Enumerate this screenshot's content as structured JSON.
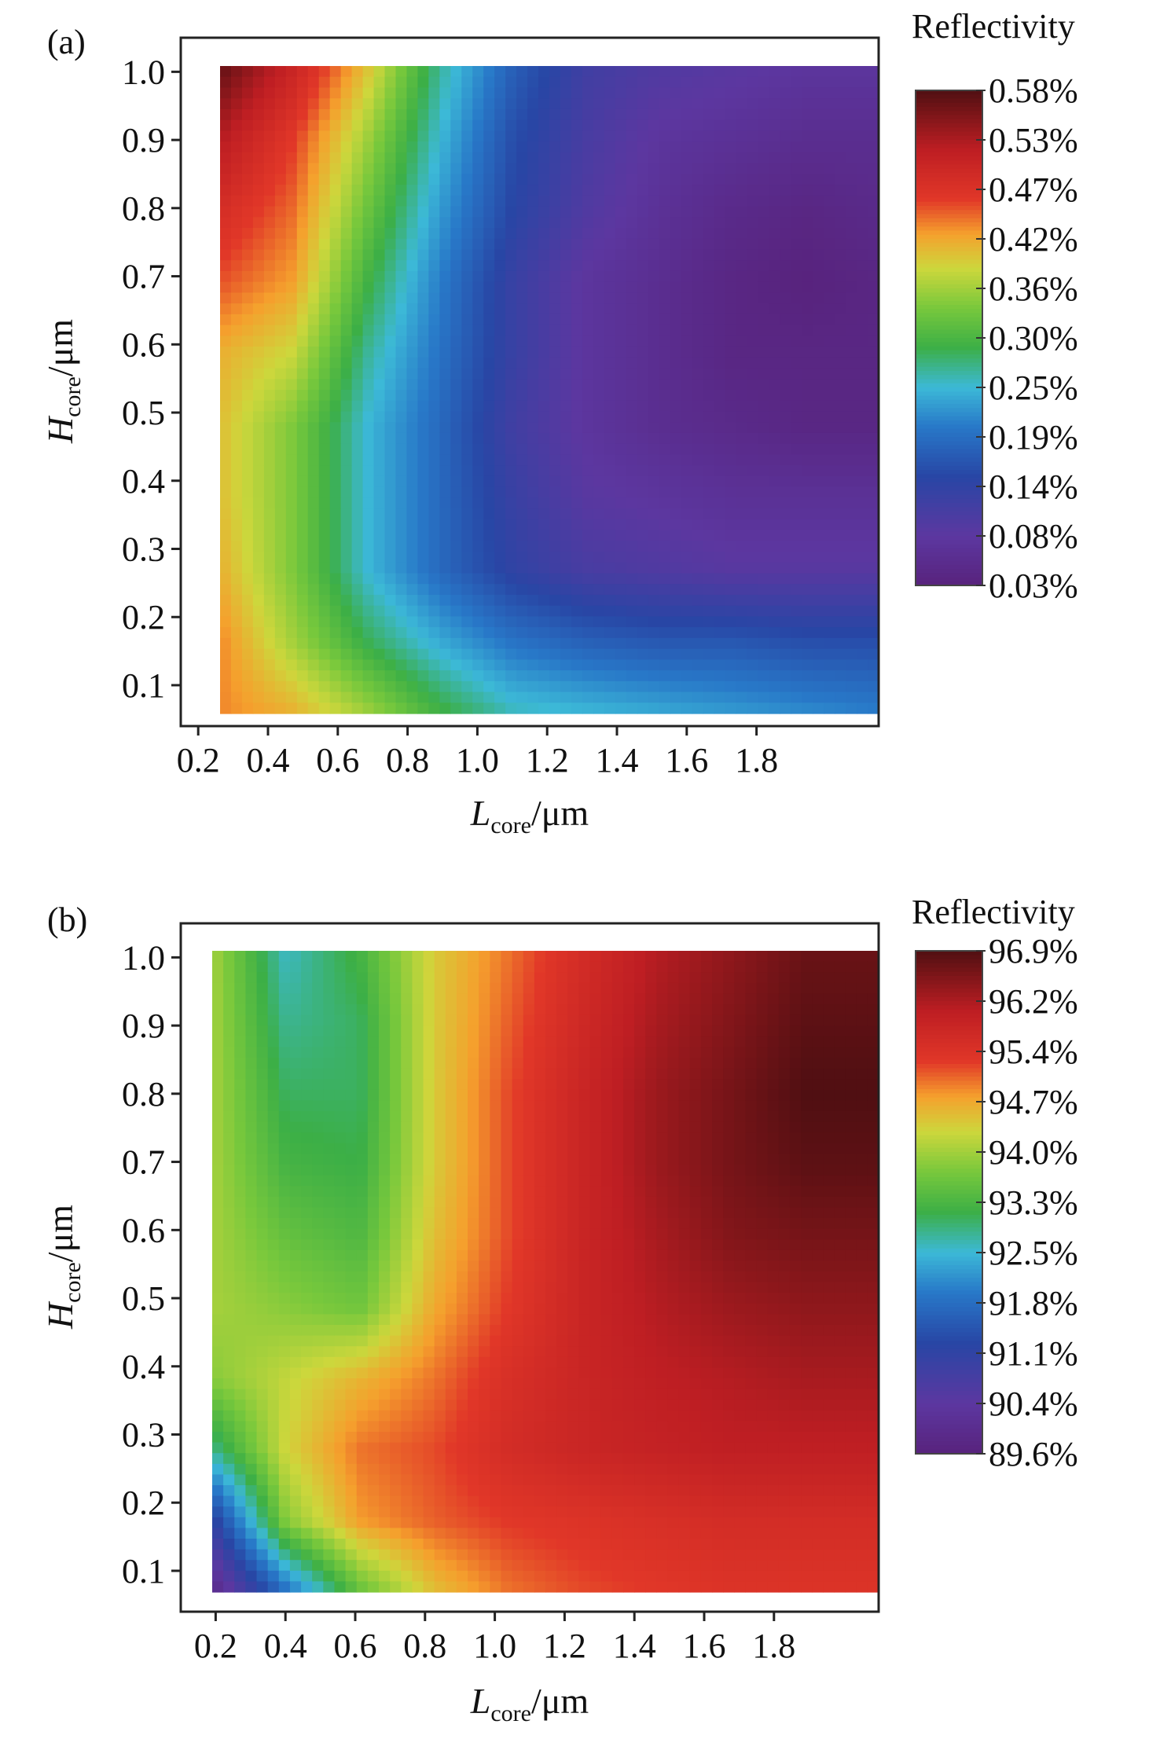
{
  "chart_data": [
    {
      "type": "heatmap",
      "panel_label": "(a)",
      "colorbar_title": "Reflectivity",
      "xlabel": {
        "main": "L",
        "sub": "core",
        "unit": "/μm"
      },
      "ylabel": {
        "main": "H",
        "sub": "core",
        "unit": "/μm"
      },
      "xlim": [
        0.15,
        2.15
      ],
      "ylim": [
        0.04,
        1.05
      ],
      "x_ticks": [
        "0.2",
        "0.4",
        "0.6",
        "0.8",
        "1.0",
        "1.2",
        "1.4",
        "1.6",
        "1.8"
      ],
      "y_ticks": [
        "0.1",
        "0.2",
        "0.3",
        "0.4",
        "0.5",
        "0.6",
        "0.7",
        "0.8",
        "0.9",
        "1.0"
      ],
      "colorbar_ticks": [
        "0.58%",
        "0.53%",
        "0.47%",
        "0.42%",
        "0.36%",
        "0.30%",
        "0.25%",
        "0.19%",
        "0.14%",
        "0.08%",
        "0.03%"
      ],
      "value_range": [
        0.03,
        0.58
      ],
      "value_unit": "%",
      "x": [
        0.2,
        0.4,
        0.6,
        0.8,
        1.0,
        1.2,
        1.4,
        1.6,
        1.8,
        2.0
      ],
      "y": [
        0.1,
        0.2,
        0.3,
        0.4,
        0.5,
        0.6,
        0.7,
        0.8,
        0.9,
        1.0
      ],
      "z": [
        [
          0.43,
          0.41,
          0.36,
          0.3,
          0.26,
          0.25,
          0.24,
          0.23,
          0.22,
          0.21
        ],
        [
          0.43,
          0.36,
          0.29,
          0.24,
          0.2,
          0.18,
          0.17,
          0.17,
          0.16,
          0.16
        ],
        [
          0.41,
          0.34,
          0.25,
          0.19,
          0.14,
          0.11,
          0.1,
          0.09,
          0.09,
          0.09
        ],
        [
          0.4,
          0.34,
          0.25,
          0.19,
          0.13,
          0.09,
          0.08,
          0.07,
          0.07,
          0.07
        ],
        [
          0.4,
          0.34,
          0.25,
          0.19,
          0.12,
          0.08,
          0.06,
          0.05,
          0.04,
          0.04
        ],
        [
          0.41,
          0.38,
          0.27,
          0.2,
          0.13,
          0.08,
          0.06,
          0.04,
          0.04,
          0.04
        ],
        [
          0.45,
          0.42,
          0.3,
          0.21,
          0.13,
          0.08,
          0.06,
          0.04,
          0.03,
          0.04
        ],
        [
          0.48,
          0.44,
          0.33,
          0.23,
          0.15,
          0.1,
          0.07,
          0.05,
          0.04,
          0.05
        ],
        [
          0.52,
          0.46,
          0.36,
          0.25,
          0.16,
          0.11,
          0.08,
          0.07,
          0.06,
          0.06
        ],
        [
          0.57,
          0.5,
          0.4,
          0.27,
          0.18,
          0.12,
          0.1,
          0.09,
          0.08,
          0.08
        ]
      ]
    },
    {
      "type": "heatmap",
      "panel_label": "(b)",
      "colorbar_title": "Reflectivity",
      "xlabel": {
        "main": "L",
        "sub": "core",
        "unit": "/μm"
      },
      "ylabel": {
        "main": "H",
        "sub": "core",
        "unit": "/μm"
      },
      "xlim": [
        0.1,
        2.1
      ],
      "ylim": [
        0.04,
        1.05
      ],
      "x_ticks": [
        "0.2",
        "0.4",
        "0.6",
        "0.8",
        "1.0",
        "1.2",
        "1.4",
        "1.6",
        "1.8"
      ],
      "y_ticks": [
        "0.1",
        "0.2",
        "0.3",
        "0.4",
        "0.5",
        "0.6",
        "0.7",
        "0.8",
        "0.9",
        "1.0"
      ],
      "colorbar_ticks": [
        "96.9%",
        "96.2%",
        "95.4%",
        "94.7%",
        "94.0%",
        "93.3%",
        "92.5%",
        "91.8%",
        "91.1%",
        "90.4%",
        "89.6%"
      ],
      "value_range": [
        89.6,
        96.9
      ],
      "value_unit": "%",
      "x": [
        0.2,
        0.4,
        0.6,
        0.8,
        1.0,
        1.2,
        1.4,
        1.6,
        1.8,
        2.0
      ],
      "y": [
        0.1,
        0.2,
        0.3,
        0.4,
        0.5,
        0.6,
        0.7,
        0.8,
        0.9,
        1.0
      ],
      "z": [
        [
          89.8,
          91.8,
          93.5,
          94.5,
          95.0,
          95.2,
          95.3,
          95.4,
          95.4,
          95.4
        ],
        [
          91.0,
          93.8,
          94.8,
          95.1,
          95.3,
          95.4,
          95.5,
          95.6,
          95.6,
          95.6
        ],
        [
          92.8,
          94.3,
          95.0,
          95.2,
          95.6,
          95.8,
          95.9,
          96.0,
          96.0,
          96.0
        ],
        [
          93.8,
          94.2,
          94.6,
          95.0,
          95.5,
          95.8,
          96.0,
          96.1,
          96.2,
          96.2
        ],
        [
          94.0,
          93.8,
          93.6,
          94.7,
          95.3,
          95.8,
          96.1,
          96.3,
          96.4,
          96.4
        ],
        [
          94.0,
          93.5,
          93.3,
          94.5,
          95.2,
          95.8,
          96.2,
          96.5,
          96.6,
          96.6
        ],
        [
          94.0,
          93.2,
          93.1,
          94.4,
          95.2,
          95.8,
          96.3,
          96.6,
          96.8,
          96.8
        ],
        [
          94.0,
          93.0,
          93.0,
          94.4,
          95.2,
          95.8,
          96.3,
          96.6,
          96.9,
          96.9
        ],
        [
          94.0,
          92.8,
          93.0,
          94.4,
          95.1,
          95.7,
          96.2,
          96.5,
          96.8,
          96.8
        ],
        [
          94.0,
          92.6,
          93.2,
          94.4,
          95.0,
          95.6,
          96.1,
          96.4,
          96.7,
          96.7
        ]
      ]
    }
  ]
}
